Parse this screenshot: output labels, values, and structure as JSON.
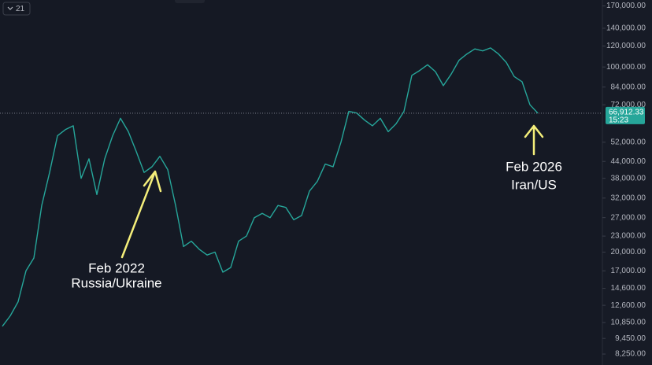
{
  "chart_data": {
    "type": "line",
    "log_scale": true,
    "color": "#26a69a",
    "interval_badge": "21",
    "values": [
      10500,
      11500,
      13000,
      17000,
      19000,
      30000,
      40000,
      55000,
      58000,
      60000,
      38000,
      45000,
      33000,
      45000,
      55000,
      64000,
      57000,
      48000,
      40000,
      42000,
      46000,
      41000,
      30000,
      21000,
      22000,
      20500,
      19500,
      20000,
      16800,
      17500,
      22000,
      23000,
      27000,
      28000,
      27000,
      30000,
      29500,
      26500,
      27500,
      34000,
      37000,
      43000,
      42000,
      52000,
      68000,
      67000,
      63000,
      60000,
      64000,
      57000,
      61000,
      68000,
      93000,
      97000,
      102000,
      96000,
      85000,
      94000,
      106000,
      112000,
      117000,
      115000,
      118000,
      112000,
      104000,
      92000,
      88000,
      72000,
      66912.33
    ],
    "ylim": [
      7500,
      179000
    ],
    "yticks": [
      {
        "value": 170000,
        "label": "170,000.00"
      },
      {
        "value": 140000,
        "label": "140,000.00"
      },
      {
        "value": 120000,
        "label": "120,000.00"
      },
      {
        "value": 100000,
        "label": "100,000.00"
      },
      {
        "value": 84000,
        "label": "84,000.00"
      },
      {
        "value": 72000,
        "label": "72,000.00"
      },
      {
        "value": 52000,
        "label": "52,000.00"
      },
      {
        "value": 44000,
        "label": "44,000.00"
      },
      {
        "value": 38000,
        "label": "38,000.00"
      },
      {
        "value": 32000,
        "label": "32,000.00"
      },
      {
        "value": 27000,
        "label": "27,000.00"
      },
      {
        "value": 23000,
        "label": "23,000.00"
      },
      {
        "value": 20000,
        "label": "20,000.00"
      },
      {
        "value": 17000,
        "label": "17,000.00"
      },
      {
        "value": 14600,
        "label": "14,600.00"
      },
      {
        "value": 12600,
        "label": "12,600.00"
      },
      {
        "value": 10850,
        "label": "10,850.00"
      },
      {
        "value": 9450,
        "label": "9,450.00"
      },
      {
        "value": 8250,
        "label": "8,250.00"
      }
    ],
    "last_price": {
      "value": 66912.33,
      "label": "66,912.33"
    },
    "countdown": "15:23",
    "annotations": [
      {
        "lines": [
          "Feb 2022",
          "Russia/Ukraine"
        ]
      },
      {
        "lines": [
          "Feb 2026",
          "Iran/US"
        ]
      }
    ]
  }
}
